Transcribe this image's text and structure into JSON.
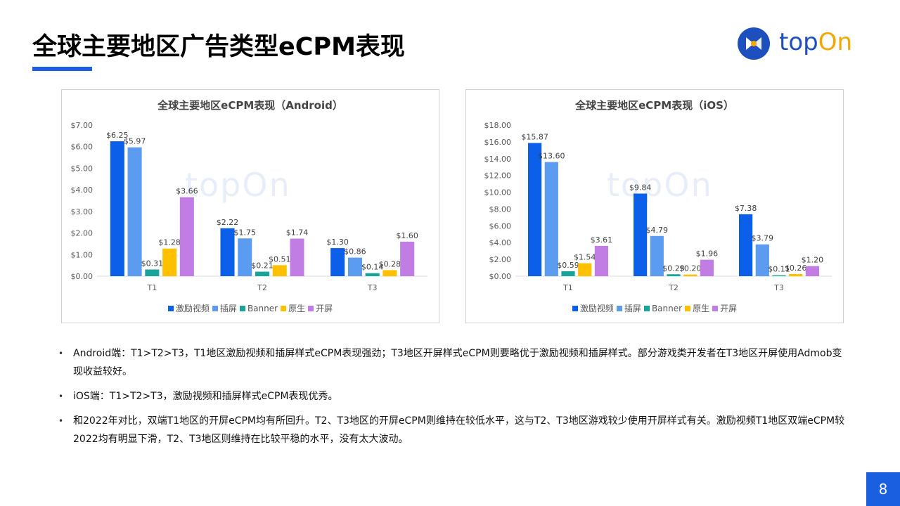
{
  "page": {
    "title": "全球主要地区广告类型eCPM表现",
    "page_number": "8",
    "accent_color": "#1a5fe0"
  },
  "logo": {
    "icon": "topon-logo-icon",
    "text_part1": "top",
    "text_part2": "On"
  },
  "charts": [
    {
      "title": "全球主要地区eCPM表现（Android）",
      "watermark": "topOn"
    },
    {
      "title": "全球主要地区eCPM表现（iOS）",
      "watermark": "topOn"
    }
  ],
  "chart_data": [
    {
      "type": "bar",
      "title": "全球主要地区eCPM表现（Android）",
      "categories": [
        "T1",
        "T2",
        "T3"
      ],
      "series": [
        {
          "name": "激励视频",
          "color": "#0b5fe8",
          "values": [
            6.25,
            2.22,
            1.3
          ],
          "labels": [
            "$6.25",
            "$2.22",
            "$1.30"
          ]
        },
        {
          "name": "插屏",
          "color": "#5b9bf0",
          "values": [
            5.97,
            1.75,
            0.86
          ],
          "labels": [
            "$5.97",
            "$1.75",
            "$0.86"
          ]
        },
        {
          "name": "Banner",
          "color": "#17a59a",
          "values": [
            0.31,
            0.21,
            0.14
          ],
          "labels": [
            "$0.31",
            "$0.21",
            "$0.14"
          ]
        },
        {
          "name": "原生",
          "color": "#ffc000",
          "values": [
            1.28,
            0.51,
            0.28
          ],
          "labels": [
            "$1.28",
            "$0.51",
            "$0.28"
          ]
        },
        {
          "name": "开屏",
          "color": "#c17de4",
          "values": [
            3.66,
            1.74,
            1.6
          ],
          "labels": [
            "$3.66",
            "$1.74",
            "$1.60"
          ]
        }
      ],
      "ylim": [
        0,
        7
      ],
      "yticks": [
        "$0.00",
        "$1.00",
        "$2.00",
        "$3.00",
        "$4.00",
        "$5.00",
        "$6.00",
        "$7.00"
      ],
      "grid": false,
      "legend": "bottom"
    },
    {
      "type": "bar",
      "title": "全球主要地区eCPM表现（iOS）",
      "categories": [
        "T1",
        "T2",
        "T3"
      ],
      "series": [
        {
          "name": "激励视频",
          "color": "#0b5fe8",
          "values": [
            15.87,
            9.84,
            7.38
          ],
          "labels": [
            "$15.87",
            "$9.84",
            "$7.38"
          ]
        },
        {
          "name": "插屏",
          "color": "#5b9bf0",
          "values": [
            13.6,
            4.79,
            3.79
          ],
          "labels": [
            "$13.60",
            "$4.79",
            "$3.79"
          ]
        },
        {
          "name": "Banner",
          "color": "#17a59a",
          "values": [
            0.59,
            0.23,
            0.11
          ],
          "labels": [
            "$0.59",
            "$0.23",
            "$0.11"
          ]
        },
        {
          "name": "原生",
          "color": "#ffc000",
          "values": [
            1.54,
            0.2,
            0.26
          ],
          "labels": [
            "$1.54",
            "$0.20",
            "$0.26"
          ]
        },
        {
          "name": "开屏",
          "color": "#c17de4",
          "values": [
            3.61,
            1.96,
            1.2
          ],
          "labels": [
            "$3.61",
            "$1.96",
            "$1.20"
          ]
        }
      ],
      "ylim": [
        0,
        18
      ],
      "yticks": [
        "$0.00",
        "$2.00",
        "$4.00",
        "$6.00",
        "$8.00",
        "$10.00",
        "$12.00",
        "$14.00",
        "$16.00",
        "$18.00"
      ],
      "grid": false,
      "legend": "bottom"
    }
  ],
  "bullets": [
    {
      "text": "Android端：T1>T2>T3，T1地区激励视频和插屏样式eCPM表现强劲；T3地区开屏样式eCPM则要略优于激励视频和插屏样式。部分游戏类开发者在T3地区开屏使用Admob变现收益较好。"
    },
    {
      "text": "iOS端：T1>T2>T3，激励视频和插屏样式eCPM表现优秀。"
    },
    {
      "text": "和2022年对比，双端T1地区的开屏eCPM均有所回升。T2、T3地区的开屏eCPM则维持在较低水平，这与T2、T3地区游戏较少使用开屏样式有关。激励视频T1地区双端eCPM较2022均有明显下滑，T2、T3地区则维持在比较平稳的水平，没有太大波动。"
    }
  ],
  "bullet_symbol": "•"
}
